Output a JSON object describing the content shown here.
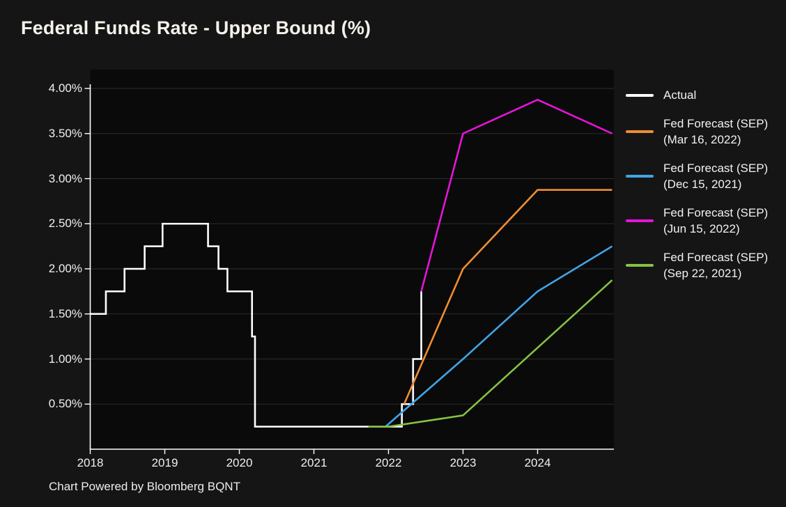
{
  "title": "Federal Funds Rate - Upper Bound (%)",
  "footer": "Chart Powered by Bloomberg BQNT",
  "colors": {
    "page_background": "#151515",
    "plot_background": "#0a0a0a",
    "axis": "#ffffff",
    "gridline": "#2d2d2d",
    "tick_label": "#f0f0f0",
    "actual": "#ffffff",
    "forecast_mar_2022": "#ef8d33",
    "forecast_dec_2021": "#41a4e6",
    "forecast_jun_2022": "#e614d9",
    "forecast_sep_2021": "#84c341"
  },
  "legend": {
    "items": [
      {
        "label_lines": [
          "Actual"
        ],
        "color": "#ffffff"
      },
      {
        "label_lines": [
          "Fed Forecast (SEP)",
          "(Mar 16, 2022)"
        ],
        "color": "#ef8d33"
      },
      {
        "label_lines": [
          "Fed Forecast (SEP)",
          "(Dec 15, 2021)"
        ],
        "color": "#41a4e6"
      },
      {
        "label_lines": [
          "Fed Forecast (SEP)",
          "(Jun 15, 2022)"
        ],
        "color": "#e614d9"
      },
      {
        "label_lines": [
          "Fed Forecast (SEP)",
          "(Sep 22, 2021)"
        ],
        "color": "#84c341"
      }
    ]
  },
  "chart_data": {
    "type": "line",
    "title": "Federal Funds Rate - Upper Bound (%)",
    "xlabel": "",
    "ylabel": "",
    "grid": true,
    "legend_position": "right",
    "x_axis": {
      "tick_values": [
        2018,
        2019,
        2020,
        2021,
        2022,
        2023,
        2024
      ],
      "tick_labels": [
        "2018",
        "2019",
        "2020",
        "2021",
        "2022",
        "2023",
        "2024"
      ],
      "range": [
        2018,
        2025
      ]
    },
    "y_axis": {
      "tick_values": [
        0.5,
        1.0,
        1.5,
        2.0,
        2.5,
        3.0,
        3.5,
        4.0
      ],
      "tick_labels": [
        "0.50%",
        "1.00%",
        "1.50%",
        "2.00%",
        "2.50%",
        "3.00%",
        "3.50%",
        "4.00%"
      ],
      "range": [
        0,
        4.2
      ]
    },
    "series": [
      {
        "name": "Actual",
        "color": "#ffffff",
        "mode": "step-after",
        "points": [
          [
            2018.0,
            1.5
          ],
          [
            2018.21,
            1.75
          ],
          [
            2018.46,
            2.0
          ],
          [
            2018.73,
            2.25
          ],
          [
            2018.97,
            2.5
          ],
          [
            2019.58,
            2.25
          ],
          [
            2019.72,
            2.0
          ],
          [
            2019.84,
            1.75
          ],
          [
            2020.17,
            1.25
          ],
          [
            2020.21,
            0.25
          ],
          [
            2022.18,
            0.5
          ],
          [
            2022.33,
            1.0
          ],
          [
            2022.44,
            1.75
          ]
        ]
      },
      {
        "name": "Fed Forecast (SEP) (Mar 16, 2022)",
        "color": "#ef8d33",
        "mode": "linear",
        "points": [
          [
            2022.21,
            0.5
          ],
          [
            2023.0,
            2.0
          ],
          [
            2024.0,
            2.875
          ],
          [
            2025.0,
            2.875
          ]
        ]
      },
      {
        "name": "Fed Forecast (SEP) (Dec 15, 2021)",
        "color": "#41a4e6",
        "mode": "linear",
        "points": [
          [
            2021.96,
            0.25
          ],
          [
            2023.0,
            1.0
          ],
          [
            2024.0,
            1.75
          ],
          [
            2025.0,
            2.25
          ]
        ]
      },
      {
        "name": "Fed Forecast (SEP) (Jun 15, 2022)",
        "color": "#e614d9",
        "mode": "linear",
        "points": [
          [
            2022.44,
            1.75
          ],
          [
            2023.0,
            3.5
          ],
          [
            2024.0,
            3.875
          ],
          [
            2025.0,
            3.5
          ]
        ]
      },
      {
        "name": "Fed Forecast (SEP) (Sep 22, 2021)",
        "color": "#84c341",
        "mode": "linear",
        "points": [
          [
            2021.73,
            0.25
          ],
          [
            2022.0,
            0.25
          ],
          [
            2023.0,
            0.375
          ],
          [
            2024.0,
            1.125
          ],
          [
            2025.0,
            1.875
          ]
        ]
      }
    ]
  }
}
